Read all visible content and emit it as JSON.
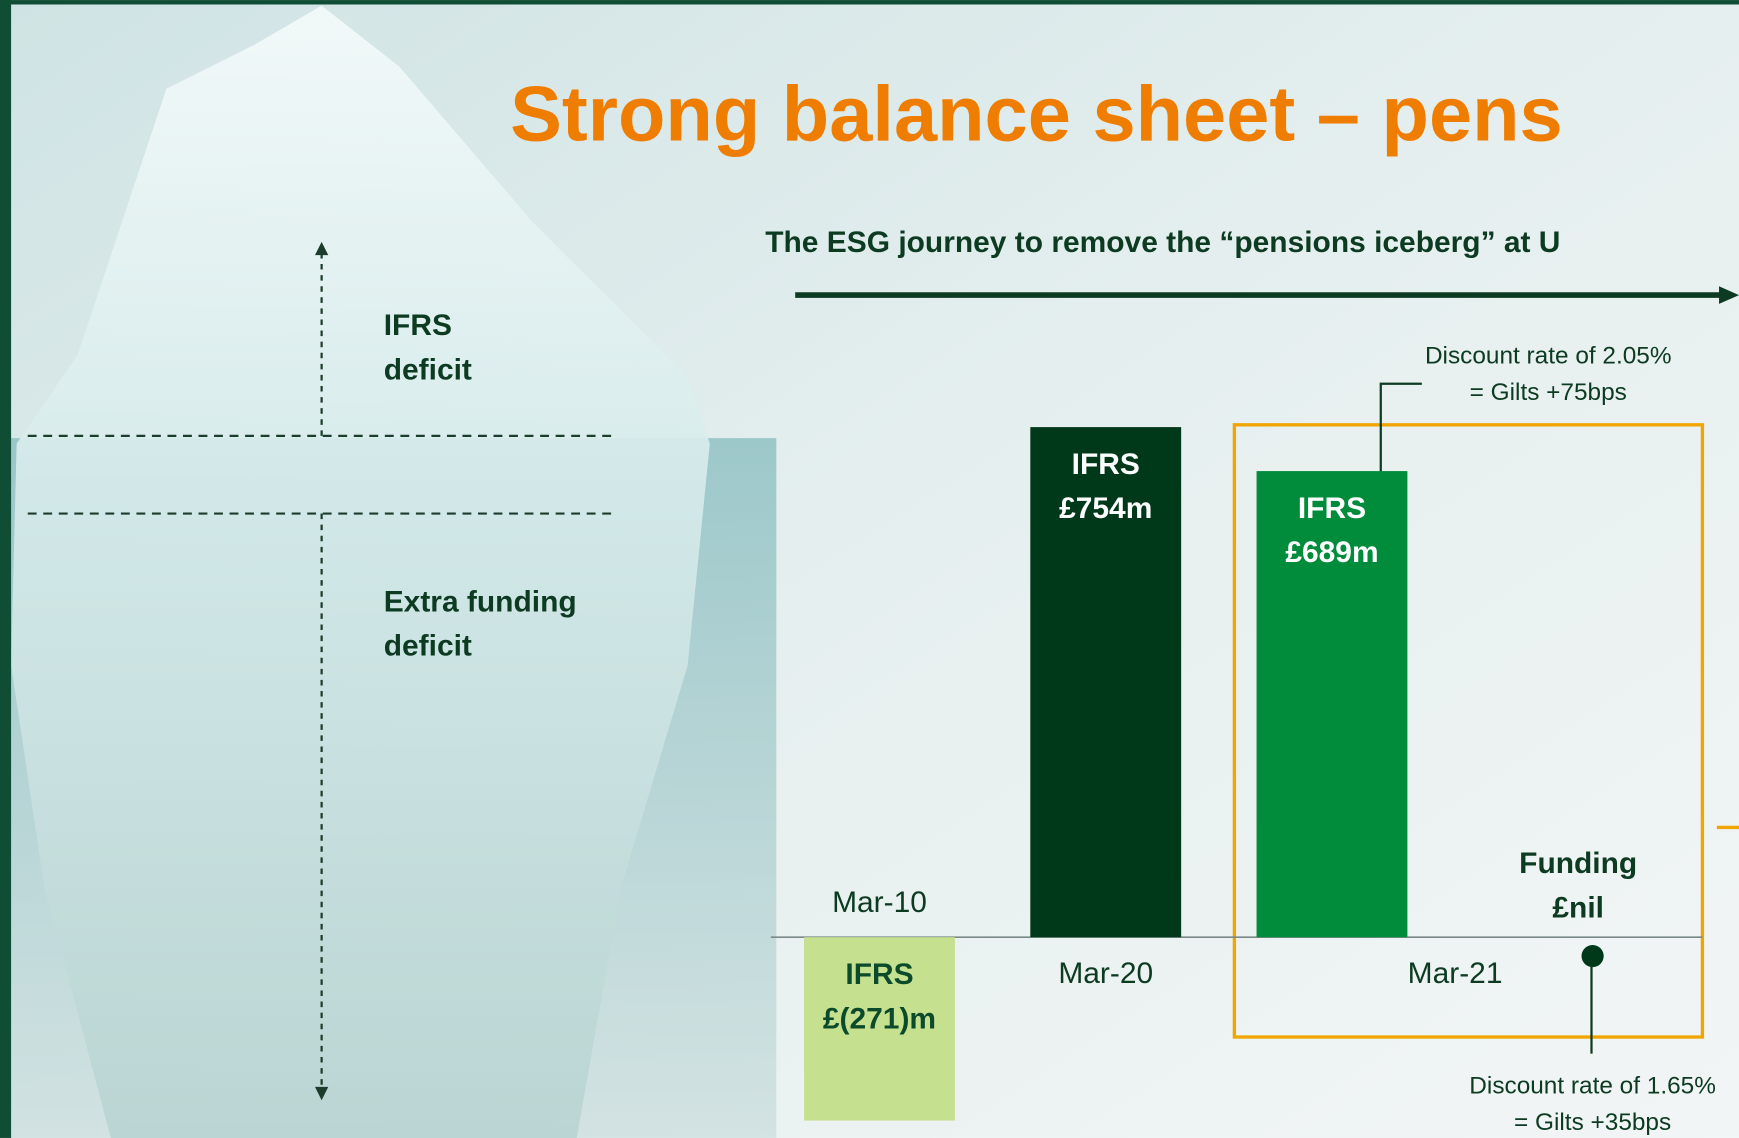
{
  "chart_data": {
    "type": "bar",
    "title": "Strong balance sheet – pens",
    "subtitle": "The ESG journey to remove the “pensions iceberg” at U",
    "iceberg_labels": [
      [
        "IFRS",
        "deficit"
      ],
      [
        "Extra funding",
        "deficit"
      ]
    ],
    "categories": [
      "Mar-10",
      "Mar-20",
      "Mar-21"
    ],
    "series": [
      {
        "name": "IFRS",
        "colors": [
          "#c5e08e",
          "#00381a",
          "#008c3a"
        ],
        "values": [
          -271,
          754,
          689
        ],
        "value_labels": [
          "£(271)m",
          "£754m",
          "£689m"
        ]
      },
      {
        "name": "Funding",
        "color": "#00381a",
        "values": [
          null,
          null,
          0
        ],
        "value_labels": [
          null,
          null,
          "£nil"
        ]
      }
    ],
    "annotations": [
      [
        "Discount rate of 2.05%",
        "= Gilts +75bps"
      ],
      [
        "Discount rate of 1.65%",
        "= Gilts +35bps"
      ]
    ]
  }
}
